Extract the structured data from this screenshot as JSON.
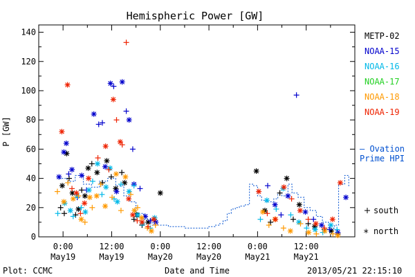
{
  "chart_data": {
    "type": "scatter",
    "title": "Hemispheric Power [GW]",
    "ylabel": "P [GW]",
    "xlabel": "Date and Time",
    "ylim": [
      0,
      145
    ],
    "yticks": [
      0,
      20,
      40,
      60,
      80,
      100,
      120,
      140
    ],
    "xlim_hours": [
      -6,
      72
    ],
    "xticks": [
      {
        "hour": 0,
        "time": "0:00",
        "date": "May19"
      },
      {
        "hour": 12,
        "time": "12:00",
        "date": "May19"
      },
      {
        "hour": 24,
        "time": "0:00",
        "date": "May20"
      },
      {
        "hour": 36,
        "time": "12:00",
        "date": "May20"
      },
      {
        "hour": 48,
        "time": "0:00",
        "date": "May21"
      },
      {
        "hour": 60,
        "time": "12:00",
        "date": "May21"
      }
    ],
    "series": [
      {
        "name": "METP-02",
        "color": "#000000",
        "points": [
          [
            -0.6,
            20,
            "s"
          ],
          [
            -0.2,
            35,
            "n"
          ],
          [
            0.3,
            16,
            "s"
          ],
          [
            0.9,
            57,
            "n"
          ],
          [
            1.5,
            40,
            "s"
          ],
          [
            2.3,
            30,
            "n"
          ],
          [
            3.1,
            15,
            "s"
          ],
          [
            3.8,
            19,
            "n"
          ],
          [
            4.6,
            32,
            "s"
          ],
          [
            5.4,
            28,
            "n"
          ],
          [
            6.2,
            47,
            "n"
          ],
          [
            7.1,
            50,
            "s"
          ],
          [
            8.4,
            44,
            "n"
          ],
          [
            9.7,
            37,
            "s"
          ],
          [
            10.8,
            52,
            "n"
          ],
          [
            11.9,
            41,
            "s"
          ],
          [
            13,
            33,
            "n"
          ],
          [
            14.5,
            44,
            "s"
          ],
          [
            15.2,
            37,
            "n"
          ],
          [
            17.5,
            12,
            "s"
          ],
          [
            18.2,
            15,
            "n"
          ],
          [
            19.5,
            8,
            "s"
          ],
          [
            21,
            10,
            "n"
          ],
          [
            22.5,
            12,
            "s"
          ],
          [
            24,
            30,
            "n"
          ],
          [
            47.7,
            45,
            "n"
          ],
          [
            49.8,
            18,
            "n"
          ],
          [
            51.2,
            10,
            "s"
          ],
          [
            53.5,
            30,
            "s"
          ],
          [
            55.2,
            40,
            "n"
          ],
          [
            56.8,
            12,
            "s"
          ],
          [
            58.3,
            22,
            "n"
          ],
          [
            60.5,
            9,
            "s"
          ],
          [
            62.1,
            7,
            "n"
          ],
          [
            64.5,
            5,
            "s"
          ],
          [
            66.2,
            4,
            "n"
          ],
          [
            67.8,
            2,
            "s"
          ]
        ]
      },
      {
        "name": "NOAA-15",
        "color": "#0000cc",
        "points": [
          [
            -1,
            41,
            "n"
          ],
          [
            0.2,
            58,
            "n"
          ],
          [
            0.8,
            64,
            "n"
          ],
          [
            1.4,
            43,
            "s"
          ],
          [
            2.2,
            46,
            "n"
          ],
          [
            3.5,
            27,
            "s"
          ],
          [
            4.6,
            42,
            "n"
          ],
          [
            5.8,
            32,
            "s"
          ],
          [
            7.6,
            84,
            "n"
          ],
          [
            8.8,
            77,
            "s"
          ],
          [
            9.7,
            78,
            "s"
          ],
          [
            10.4,
            48,
            "n"
          ],
          [
            11.7,
            105,
            "n"
          ],
          [
            12.5,
            103,
            "s"
          ],
          [
            13.2,
            31,
            "n"
          ],
          [
            14.6,
            106,
            "n"
          ],
          [
            15.6,
            86,
            "s"
          ],
          [
            16.3,
            80,
            "n"
          ],
          [
            17.2,
            60,
            "s"
          ],
          [
            17.5,
            36,
            "n"
          ],
          [
            19,
            33,
            "s"
          ],
          [
            20.3,
            14,
            "n"
          ],
          [
            21.6,
            11,
            "s"
          ],
          [
            22.9,
            10,
            "n"
          ],
          [
            50.5,
            35,
            "s"
          ],
          [
            52.3,
            22,
            "n"
          ],
          [
            53.8,
            15,
            "s"
          ],
          [
            55.5,
            28,
            "n"
          ],
          [
            57.6,
            97,
            "s"
          ],
          [
            59.8,
            17,
            "n"
          ],
          [
            61.8,
            12,
            "s"
          ],
          [
            63.8,
            8,
            "n"
          ],
          [
            65.8,
            5,
            "s"
          ],
          [
            67.8,
            3,
            "n"
          ],
          [
            69.8,
            27,
            "n"
          ]
        ]
      },
      {
        "name": "NOAA-16",
        "color": "#00b8e8",
        "points": [
          [
            -1.3,
            16,
            "s"
          ],
          [
            0.4,
            23,
            "n"
          ],
          [
            1.8,
            18,
            "n"
          ],
          [
            2.5,
            14,
            "s"
          ],
          [
            3.5,
            28,
            "n"
          ],
          [
            4.5,
            20,
            "s"
          ],
          [
            5.5,
            17,
            "n"
          ],
          [
            6.4,
            32,
            "n"
          ],
          [
            7.3,
            38,
            "s"
          ],
          [
            8.5,
            50,
            "n"
          ],
          [
            9.6,
            29,
            "s"
          ],
          [
            10.6,
            34,
            "n"
          ],
          [
            11.6,
            47,
            "n"
          ],
          [
            12.6,
            26,
            "s"
          ],
          [
            13.4,
            24,
            "n"
          ],
          [
            14.3,
            36,
            "s"
          ],
          [
            16.3,
            31,
            "n"
          ],
          [
            17.5,
            35,
            "s"
          ],
          [
            18.4,
            15,
            "n"
          ],
          [
            19.6,
            9,
            "n"
          ],
          [
            21.5,
            6,
            "s"
          ],
          [
            22.6,
            13,
            "n"
          ],
          [
            48.7,
            12,
            "s"
          ],
          [
            50.3,
            25,
            "n"
          ],
          [
            52.6,
            19,
            "s"
          ],
          [
            54.3,
            33,
            "n"
          ],
          [
            56.2,
            15,
            "s"
          ],
          [
            58.2,
            10,
            "n"
          ],
          [
            60.1,
            6,
            "s"
          ],
          [
            62.2,
            5,
            "n"
          ],
          [
            64.1,
            3,
            "s"
          ],
          [
            66.1,
            8,
            "n"
          ],
          [
            67.6,
            5,
            "s"
          ]
        ]
      },
      {
        "name": "NOAA-17",
        "color": "#22d022",
        "points": []
      },
      {
        "name": "NOAA-18",
        "color": "#ff9900",
        "points": [
          [
            -1.4,
            31,
            "s"
          ],
          [
            0.2,
            24,
            "n"
          ],
          [
            1.2,
            37,
            "s"
          ],
          [
            2.5,
            26,
            "n"
          ],
          [
            3.8,
            28,
            "s"
          ],
          [
            4.5,
            12,
            "n"
          ],
          [
            5.4,
            10,
            "s"
          ],
          [
            6.6,
            27,
            "n"
          ],
          [
            7.2,
            20,
            "s"
          ],
          [
            8.3,
            28,
            "n"
          ],
          [
            9.3,
            36,
            "s"
          ],
          [
            10.4,
            21,
            "n"
          ],
          [
            12.1,
            27,
            "s"
          ],
          [
            13.1,
            43,
            "n"
          ],
          [
            14.3,
            18,
            "s"
          ],
          [
            15.4,
            41,
            "n"
          ],
          [
            16.7,
            29,
            "s"
          ],
          [
            17.6,
            18,
            "n"
          ],
          [
            18.4,
            20,
            "s"
          ],
          [
            19.4,
            13,
            "n"
          ],
          [
            20.8,
            6,
            "s"
          ],
          [
            21.8,
            4,
            "n"
          ],
          [
            22.8,
            8,
            "s"
          ],
          [
            49.3,
            17,
            "n"
          ],
          [
            50.8,
            8,
            "s"
          ],
          [
            52.3,
            12,
            "n"
          ],
          [
            54.4,
            6,
            "s"
          ],
          [
            56.1,
            4,
            "n"
          ],
          [
            58.6,
            9,
            "s"
          ],
          [
            60.6,
            3,
            "n"
          ],
          [
            62.5,
            2,
            "s"
          ],
          [
            64.6,
            4,
            "n"
          ],
          [
            66.6,
            2,
            "s"
          ],
          [
            67.8,
            1,
            "n"
          ]
        ]
      },
      {
        "name": "NOAA-19",
        "color": "#ee2200",
        "points": [
          [
            -0.3,
            72,
            "n"
          ],
          [
            1.1,
            104,
            "n"
          ],
          [
            2.2,
            33,
            "s"
          ],
          [
            3.3,
            30,
            "n"
          ],
          [
            4.3,
            16,
            "s"
          ],
          [
            5.3,
            23,
            "n"
          ],
          [
            6.3,
            40,
            "n"
          ],
          [
            8.6,
            54,
            "s"
          ],
          [
            10.5,
            62,
            "n"
          ],
          [
            11.3,
            46,
            "s"
          ],
          [
            12.4,
            94,
            "n"
          ],
          [
            13.2,
            80,
            "s"
          ],
          [
            14.1,
            65,
            "n"
          ],
          [
            14.6,
            63,
            "s"
          ],
          [
            15.6,
            133,
            "s"
          ],
          [
            16.2,
            26,
            "n"
          ],
          [
            17.2,
            15,
            "n"
          ],
          [
            18.3,
            11,
            "s"
          ],
          [
            19.5,
            10,
            "n"
          ],
          [
            21,
            7,
            "s"
          ],
          [
            22.4,
            12,
            "n"
          ],
          [
            48.3,
            31,
            "n"
          ],
          [
            50.4,
            16,
            "s"
          ],
          [
            52.4,
            12,
            "n"
          ],
          [
            54.5,
            34,
            "n"
          ],
          [
            56.4,
            26,
            "s"
          ],
          [
            58.5,
            18,
            "n"
          ],
          [
            60.5,
            12,
            "s"
          ],
          [
            62.4,
            9,
            "n"
          ],
          [
            64.5,
            6,
            "s"
          ],
          [
            66.5,
            12,
            "n"
          ],
          [
            68.4,
            37,
            "n"
          ]
        ]
      }
    ],
    "ovation": {
      "name": "Ovation Prime HPI",
      "legend_lines": [
        "– Ovation",
        "Prime HPI"
      ],
      "color": "#0050d0",
      "steps": [
        [
          -1,
          40
        ],
        [
          1,
          38
        ],
        [
          3,
          42
        ],
        [
          5,
          36
        ],
        [
          7,
          34
        ],
        [
          9,
          38
        ],
        [
          11,
          40
        ],
        [
          13,
          35
        ],
        [
          15,
          28
        ],
        [
          16.5,
          24
        ],
        [
          18,
          16
        ],
        [
          20,
          12
        ],
        [
          22,
          8
        ],
        [
          26,
          7
        ],
        [
          30,
          6
        ],
        [
          34,
          6
        ],
        [
          36,
          7
        ],
        [
          37.5,
          8
        ],
        [
          38.5,
          9
        ],
        [
          39.5,
          11
        ],
        [
          40.5,
          16
        ],
        [
          41.5,
          19
        ],
        [
          42.5,
          20
        ],
        [
          43.5,
          21
        ],
        [
          45,
          22
        ],
        [
          46,
          36
        ],
        [
          47,
          35
        ],
        [
          48,
          28
        ],
        [
          49,
          25
        ],
        [
          50,
          24
        ],
        [
          52,
          26
        ],
        [
          53,
          30
        ],
        [
          54,
          28
        ],
        [
          55.5,
          36
        ],
        [
          56.5,
          30
        ],
        [
          58,
          27
        ],
        [
          59.5,
          20
        ],
        [
          61,
          18
        ],
        [
          62.5,
          14
        ],
        [
          64,
          10
        ],
        [
          65.5,
          6
        ],
        [
          67,
          8
        ],
        [
          68,
          36
        ],
        [
          69.5,
          42
        ],
        [
          70.5,
          34
        ]
      ]
    },
    "legend": [
      "METP-02",
      "NOAA-15",
      "NOAA-16",
      "NOAA-17",
      "NOAA-18",
      "NOAA-19"
    ],
    "symbol_legend": [
      {
        "symbol": "+",
        "label": "south"
      },
      {
        "symbol": "*",
        "label": "north"
      }
    ],
    "footer_left": "Plot: CCMC",
    "timestamp": "2013/05/21 22:15:10"
  }
}
